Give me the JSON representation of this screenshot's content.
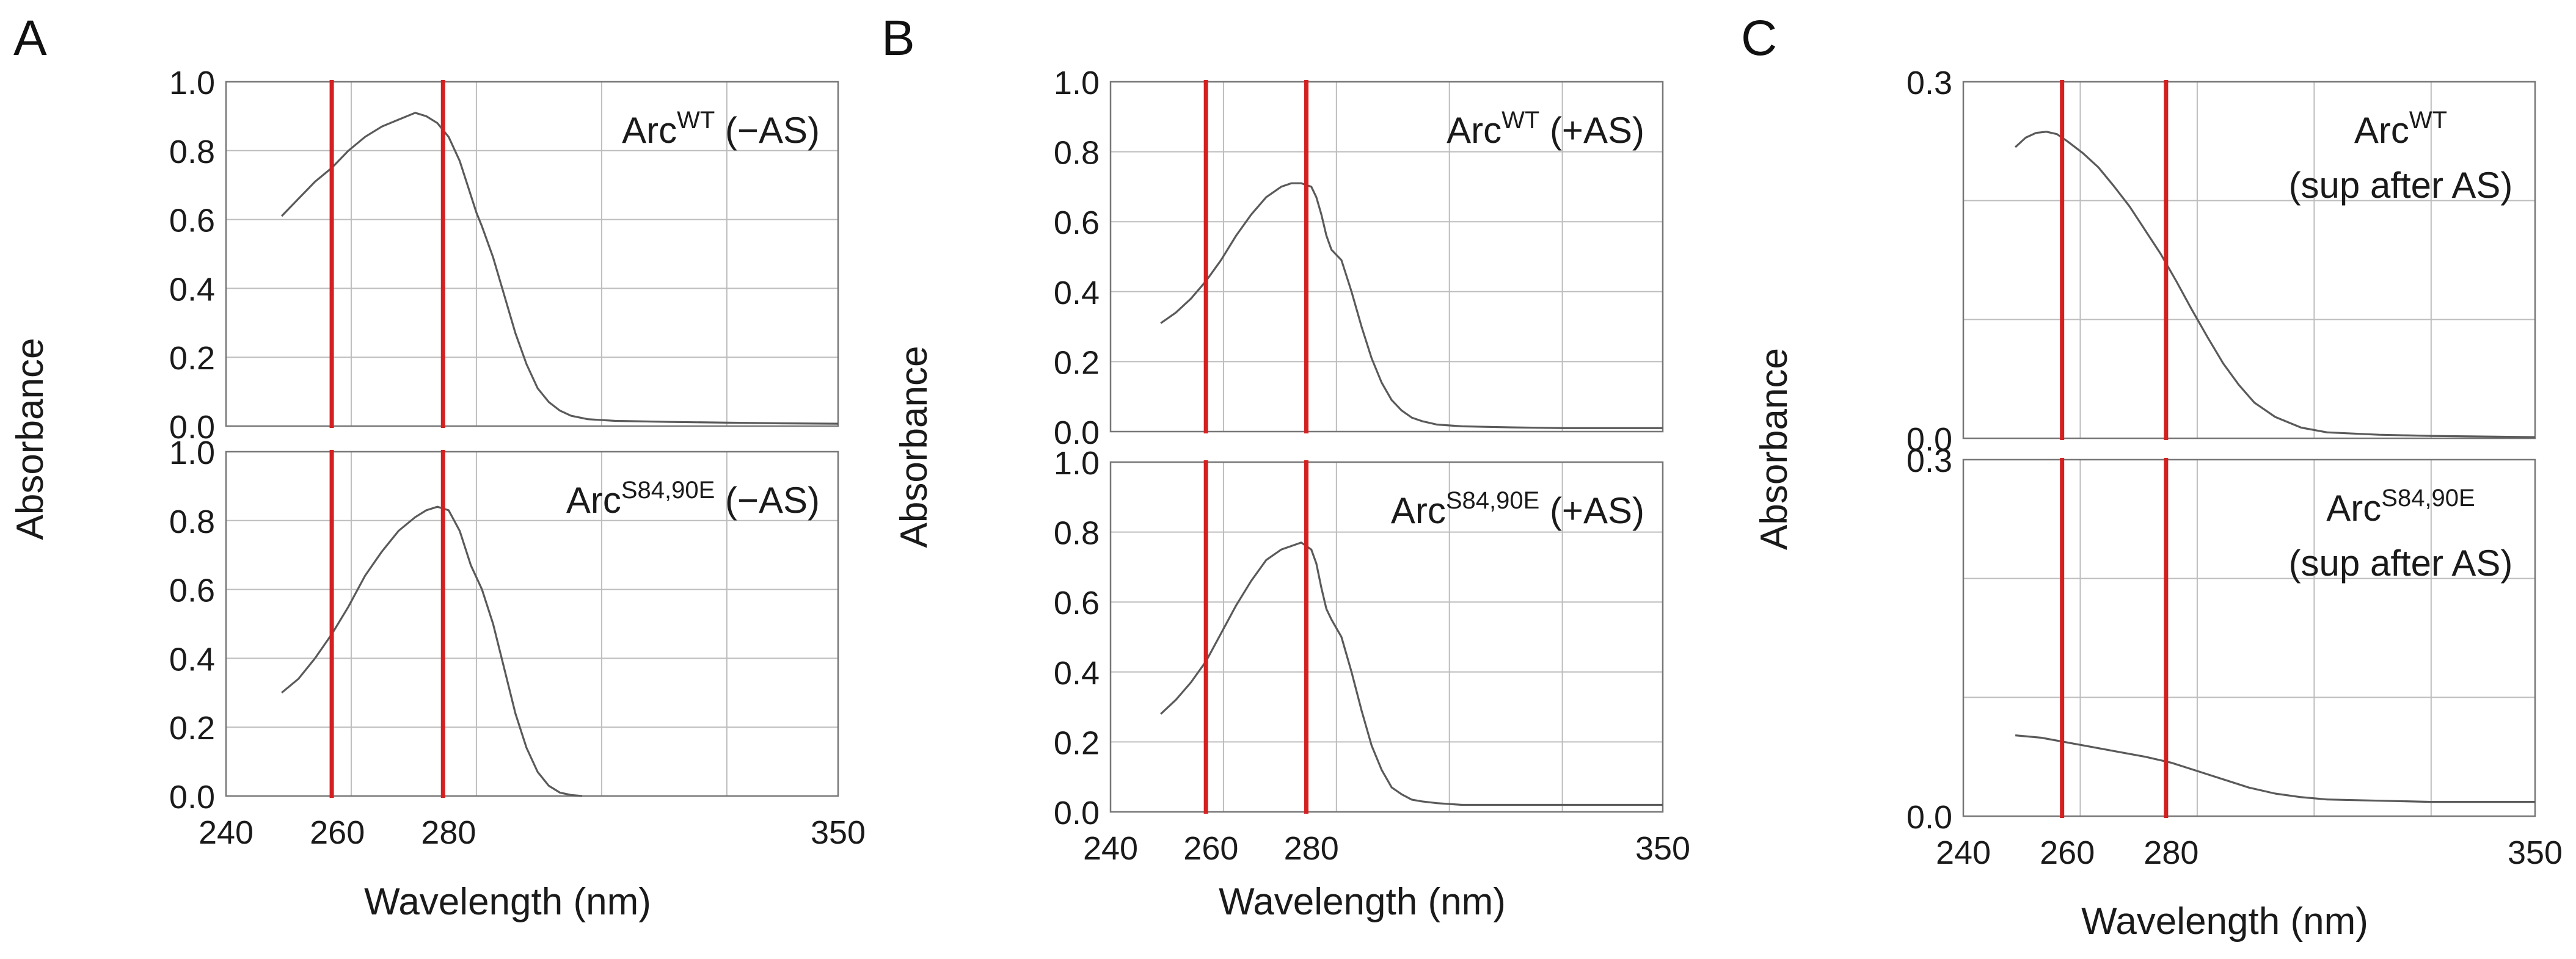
{
  "figure": {
    "panel_letters": [
      "A",
      "B",
      "C"
    ]
  },
  "colors": {
    "grid": "#bdbdbd",
    "trace": "#5a5a5a",
    "marker_line": "#d42020",
    "frame": "#777777"
  },
  "chart_data": [
    {
      "id": "A",
      "type": "line",
      "xlabel": "Wavelength (nm)",
      "ylabel": "Absorbance",
      "xlim": [
        240,
        350
      ],
      "xticks": [
        240,
        260,
        280,
        350
      ],
      "xgrid": [
        240,
        262.5,
        285,
        307.5,
        330,
        350
      ],
      "vlines": [
        259,
        279
      ],
      "subplots": [
        {
          "label_base": "Arc",
          "label_sup": "WT",
          "label_suffix": "(−AS)",
          "ylim": [
            0,
            1.0
          ],
          "yticks": [
            "0.0",
            "0.2",
            "0.4",
            "0.6",
            "0.8",
            "1.0"
          ],
          "series": {
            "x": [
              250,
              253,
              256,
              259,
              262,
              265,
              268,
              271,
              274,
              276,
              278,
              280,
              282,
              284,
              285,
              286,
              288,
              290,
              292,
              294,
              296,
              298,
              300,
              302,
              305,
              310,
              320,
              330,
              340,
              350
            ],
            "y": [
              0.61,
              0.66,
              0.71,
              0.75,
              0.8,
              0.84,
              0.87,
              0.89,
              0.91,
              0.9,
              0.88,
              0.84,
              0.77,
              0.67,
              0.62,
              0.58,
              0.49,
              0.38,
              0.27,
              0.18,
              0.11,
              0.07,
              0.045,
              0.03,
              0.02,
              0.015,
              0.012,
              0.01,
              0.008,
              0.007
            ]
          }
        },
        {
          "label_base": "Arc",
          "label_sup": "S84,90E",
          "label_suffix": "(−AS)",
          "ylim": [
            0,
            1.0
          ],
          "yticks": [
            "0.0",
            "0.2",
            "0.4",
            "0.6",
            "0.8",
            "1.0"
          ],
          "series": {
            "x": [
              250,
              253,
              256,
              259,
              262,
              265,
              268,
              271,
              274,
              276,
              278,
              280,
              282,
              284,
              286,
              288,
              290,
              292,
              294,
              296,
              298,
              300,
              302,
              304
            ],
            "y": [
              0.3,
              0.34,
              0.4,
              0.47,
              0.55,
              0.64,
              0.71,
              0.77,
              0.81,
              0.83,
              0.84,
              0.83,
              0.77,
              0.67,
              0.6,
              0.5,
              0.37,
              0.24,
              0.14,
              0.07,
              0.03,
              0.01,
              0.003,
              0.0
            ]
          }
        }
      ]
    },
    {
      "id": "B",
      "type": "line",
      "xlabel": "Wavelength (nm)",
      "ylabel": "Absorbance",
      "xlim": [
        240,
        350
      ],
      "xticks": [
        240,
        260,
        280,
        350
      ],
      "xgrid": [
        240,
        262.5,
        285,
        307.5,
        330,
        350
      ],
      "vlines": [
        259,
        279
      ],
      "subplots": [
        {
          "label_base": "Arc",
          "label_sup": "WT",
          "label_suffix": "(+AS)",
          "ylim": [
            0,
            1.0
          ],
          "yticks": [
            "0.0",
            "0.2",
            "0.4",
            "0.6",
            "0.8",
            "1.0"
          ],
          "series": {
            "x": [
              250,
              253,
              256,
              259,
              262,
              265,
              268,
              271,
              274,
              276,
              278,
              280,
              281,
              282,
              283,
              284,
              286,
              288,
              290,
              292,
              294,
              296,
              298,
              300,
              302,
              305,
              310,
              320,
              330,
              340,
              350
            ],
            "y": [
              0.31,
              0.34,
              0.38,
              0.43,
              0.49,
              0.56,
              0.62,
              0.67,
              0.7,
              0.71,
              0.71,
              0.7,
              0.67,
              0.62,
              0.56,
              0.52,
              0.49,
              0.4,
              0.3,
              0.21,
              0.14,
              0.09,
              0.06,
              0.04,
              0.03,
              0.02,
              0.015,
              0.012,
              0.01,
              0.01,
              0.01
            ]
          }
        },
        {
          "label_base": "Arc",
          "label_sup": "S84,90E",
          "label_suffix": "(+AS)",
          "ylim": [
            0,
            1.0
          ],
          "yticks": [
            "0.0",
            "0.2",
            "0.4",
            "0.6",
            "0.8",
            "1.0"
          ],
          "series": {
            "x": [
              250,
              253,
              256,
              259,
              262,
              265,
              268,
              271,
              274,
              276,
              278,
              280,
              281,
              282,
              283,
              284,
              286,
              288,
              290,
              292,
              294,
              296,
              298,
              300,
              302,
              305,
              310,
              320,
              330,
              340,
              350
            ],
            "y": [
              0.28,
              0.32,
              0.37,
              0.43,
              0.51,
              0.59,
              0.66,
              0.72,
              0.75,
              0.76,
              0.77,
              0.75,
              0.71,
              0.64,
              0.58,
              0.55,
              0.5,
              0.4,
              0.29,
              0.19,
              0.12,
              0.07,
              0.05,
              0.035,
              0.03,
              0.025,
              0.02,
              0.02,
              0.02,
              0.02,
              0.02
            ]
          }
        }
      ]
    },
    {
      "id": "C",
      "type": "line",
      "xlabel": "Wavelength (nm)",
      "ylabel": "Absorbance",
      "xlim": [
        240,
        350
      ],
      "xticks": [
        240,
        260,
        280,
        350
      ],
      "xgrid": [
        240,
        262.5,
        285,
        307.5,
        330,
        350
      ],
      "vlines": [
        259,
        279
      ],
      "subplots": [
        {
          "label_base": "Arc",
          "label_sup": "WT",
          "label_suffix": "(sup after AS)",
          "ylim": [
            0,
            0.3
          ],
          "yticks": [
            "0.0",
            "",
            "",
            "0.3"
          ],
          "series": {
            "x": [
              250,
              252,
              254,
              256,
              258,
              260,
              263,
              266,
              269,
              272,
              275,
              278,
              281,
              284,
              287,
              290,
              293,
              296,
              300,
              305,
              310,
              320,
              330,
              340,
              350
            ],
            "y": [
              0.245,
              0.253,
              0.257,
              0.258,
              0.256,
              0.25,
              0.24,
              0.228,
              0.212,
              0.195,
              0.175,
              0.155,
              0.132,
              0.108,
              0.085,
              0.063,
              0.045,
              0.03,
              0.018,
              0.009,
              0.005,
              0.003,
              0.002,
              0.0015,
              0.001
            ]
          }
        },
        {
          "label_base": "Arc",
          "label_sup": "S84,90E",
          "label_suffix": "(sup after AS)",
          "ylim": [
            0,
            0.3
          ],
          "yticks": [
            "0.0",
            "",
            "",
            "0.3"
          ],
          "series": {
            "x": [
              250,
              255,
              260,
              265,
              270,
              275,
              280,
              285,
              290,
              295,
              300,
              305,
              310,
              320,
              330,
              340,
              350
            ],
            "y": [
              0.068,
              0.066,
              0.062,
              0.058,
              0.054,
              0.05,
              0.045,
              0.038,
              0.031,
              0.024,
              0.019,
              0.016,
              0.014,
              0.013,
              0.012,
              0.012,
              0.012
            ]
          }
        }
      ]
    }
  ]
}
